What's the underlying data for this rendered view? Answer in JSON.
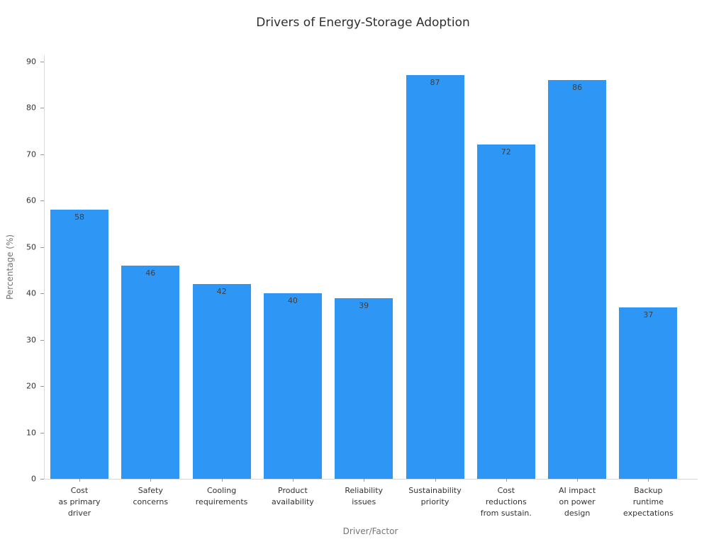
{
  "chart_data": {
    "type": "bar",
    "title": "Drivers of Energy-Storage Adoption",
    "xlabel": "Driver/Factor",
    "ylabel": "Percentage (%)",
    "categories": [
      "Cost\nas primary\ndriver",
      "Safety\nconcerns",
      "Cooling\nrequirements",
      "Product\navailability",
      "Reliability\nissues",
      "Sustainability\npriority",
      "Cost\nreductions\nfrom sustain.",
      "AI impact\non power\ndesign",
      "Backup\nruntime\nexpectations"
    ],
    "values": [
      58,
      46,
      42,
      40,
      39,
      87,
      72,
      86,
      37
    ],
    "value_labels": [
      "58",
      "46",
      "42",
      "40",
      "39",
      "87",
      "72",
      "86",
      "37"
    ],
    "ylim": [
      0,
      90
    ],
    "yticks": [
      0,
      10,
      20,
      30,
      40,
      50,
      60,
      70,
      80,
      90
    ],
    "grid": false,
    "legend": null,
    "colors": {
      "bar": "#2E96F5",
      "value_label": "#404040",
      "axis_line": "#d9d9d9",
      "tick": "#999999",
      "tick_label": "#333333",
      "axis_title": "#757575",
      "title": "#2e2e2e",
      "background": "#ffffff"
    }
  }
}
